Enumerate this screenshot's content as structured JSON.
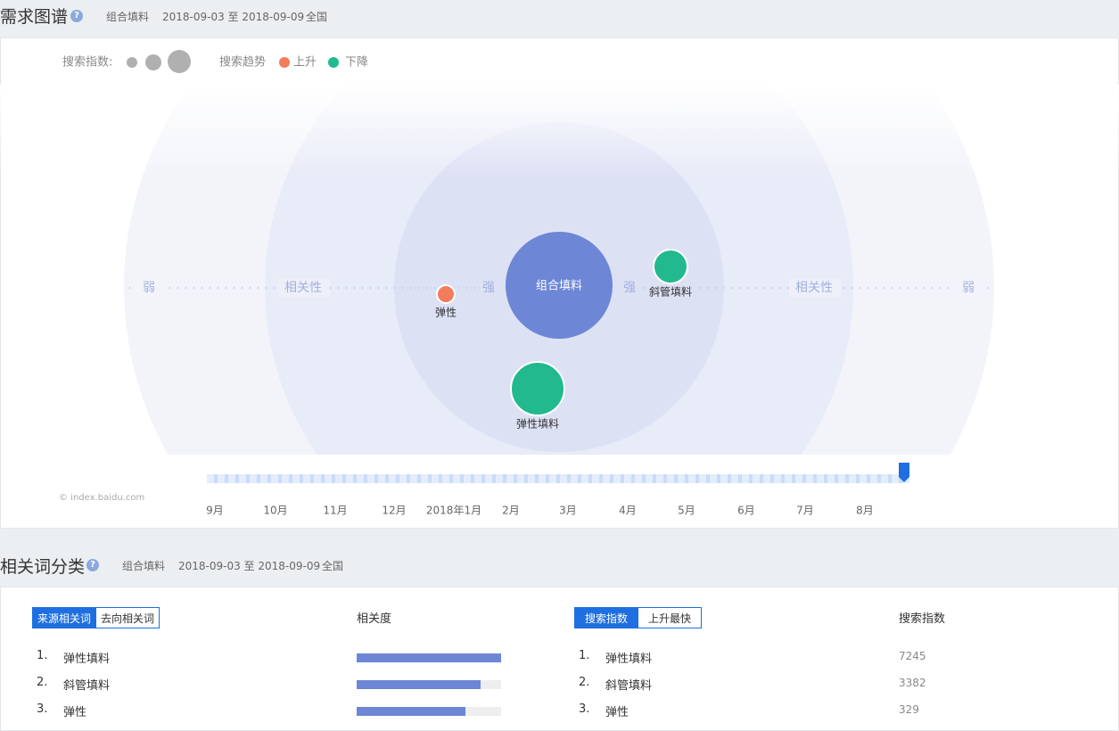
{
  "demand_graph": {
    "title": "需求图谱",
    "help": "?",
    "keyword": "组合填料",
    "date_range": "2018-09-03 至 2018-09-09",
    "region": "全国",
    "legend": {
      "size_label": "搜索指数:",
      "trend_label": "搜索趋势",
      "up": "上升",
      "down": "下降"
    },
    "axis_labels": {
      "weak": "弱",
      "relevance": "相关性",
      "strong": "强"
    },
    "center": "组合填料",
    "nodes": [
      {
        "label": "弹性",
        "trend": "up"
      },
      {
        "label": "斜管填料",
        "trend": "down"
      },
      {
        "label": "弹性填料",
        "trend": "down"
      }
    ],
    "trend_colors": {
      "up": "#f27c5c",
      "down": "#22b98f"
    },
    "watermark": "© index.baidu.com",
    "timeline": [
      "9月",
      "10月",
      "11月",
      "12月",
      "2018年1月",
      "2月",
      "3月",
      "4月",
      "5月",
      "6月",
      "7月",
      "8月"
    ]
  },
  "related": {
    "title": "相关词分类",
    "help": "?",
    "keyword": "组合填料",
    "date_range": "2018-09-03 至 2018-09-09",
    "region": "全国",
    "source_tab": "来源相关词",
    "target_tab": "去向相关词",
    "relevance_header": "相关度",
    "index_tab": "搜索指数",
    "rising_tab": "上升最快",
    "index_header": "搜索指数",
    "left_rows": [
      {
        "rank": "1.",
        "word": "弹性填料",
        "relevance": 100
      },
      {
        "rank": "2.",
        "word": "斜管填料",
        "relevance": 86
      },
      {
        "rank": "3.",
        "word": "弹性",
        "relevance": 75
      }
    ],
    "right_rows": [
      {
        "rank": "1.",
        "word": "弹性填料",
        "index": 7245
      },
      {
        "rank": "2.",
        "word": "斜管填料",
        "index": 3382
      },
      {
        "rank": "3.",
        "word": "弹性",
        "index": 329
      }
    ]
  }
}
